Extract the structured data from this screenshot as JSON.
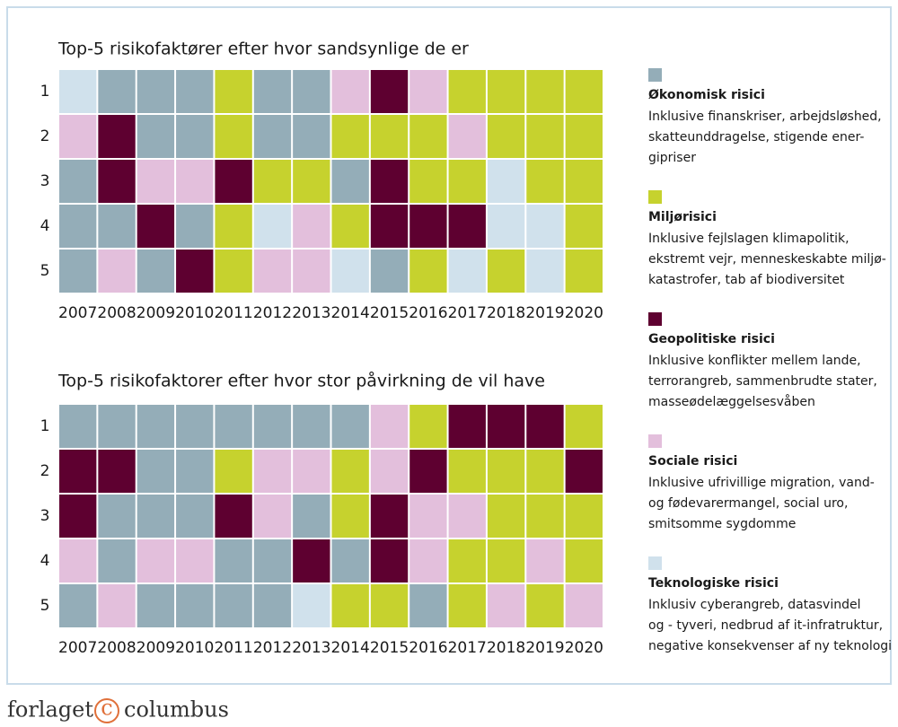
{
  "chart_data": [
    {
      "type": "categorical-grid",
      "title": "Top-5 risikofaktører efter hvor sandsynlige de er",
      "x": [
        "2007",
        "2008",
        "2009",
        "2010",
        "2011",
        "2012",
        "2013",
        "2014",
        "2015",
        "2016",
        "2017",
        "2018",
        "2019",
        "2020"
      ],
      "rows": [
        "1",
        "2",
        "3",
        "4",
        "5"
      ],
      "cells": [
        [
          "Teknologiske risici",
          "Økonomisk risici",
          "Økonomisk risici",
          "Økonomisk risici",
          "Miljørisici",
          "Økonomisk risici",
          "Økonomisk risici",
          "Sociale risici",
          "Geopolitiske risici",
          "Sociale risici",
          "Miljørisici",
          "Miljørisici",
          "Miljørisici",
          "Miljørisici"
        ],
        [
          "Sociale risici",
          "Geopolitiske risici",
          "Økonomisk risici",
          "Økonomisk risici",
          "Miljørisici",
          "Økonomisk risici",
          "Økonomisk risici",
          "Miljørisici",
          "Miljørisici",
          "Miljørisici",
          "Sociale risici",
          "Miljørisici",
          "Miljørisici",
          "Miljørisici"
        ],
        [
          "Økonomisk risici",
          "Geopolitiske risici",
          "Sociale risici",
          "Sociale risici",
          "Geopolitiske risici",
          "Miljørisici",
          "Miljørisici",
          "Økonomisk risici",
          "Geopolitiske risici",
          "Miljørisici",
          "Miljørisici",
          "Teknologiske risici",
          "Miljørisici",
          "Miljørisici"
        ],
        [
          "Økonomisk risici",
          "Økonomisk risici",
          "Geopolitiske risici",
          "Økonomisk risici",
          "Miljørisici",
          "Teknologiske risici",
          "Sociale risici",
          "Miljørisici",
          "Geopolitiske risici",
          "Geopolitiske risici",
          "Geopolitiske risici",
          "Teknologiske risici",
          "Teknologiske risici",
          "Miljørisici"
        ],
        [
          "Økonomisk risici",
          "Sociale risici",
          "Økonomisk risici",
          "Geopolitiske risici",
          "Miljørisici",
          "Sociale risici",
          "Sociale risici",
          "Teknologiske risici",
          "Økonomisk risici",
          "Miljørisici",
          "Teknologiske risici",
          "Miljørisici",
          "Teknologiske risici",
          "Miljørisici"
        ]
      ]
    },
    {
      "type": "categorical-grid",
      "title": "Top-5 risikofaktorer efter hvor stor påvirkning de vil have",
      "x": [
        "2007",
        "2008",
        "2009",
        "2010",
        "2011",
        "2012",
        "2013",
        "2014",
        "2015",
        "2016",
        "2017",
        "2018",
        "2019",
        "2020"
      ],
      "rows": [
        "1",
        "2",
        "3",
        "4",
        "5"
      ],
      "cells": [
        [
          "Økonomisk risici",
          "Økonomisk risici",
          "Økonomisk risici",
          "Økonomisk risici",
          "Økonomisk risici",
          "Økonomisk risici",
          "Økonomisk risici",
          "Økonomisk risici",
          "Sociale risici",
          "Miljørisici",
          "Geopolitiske risici",
          "Geopolitiske risici",
          "Geopolitiske risici",
          "Miljørisici"
        ],
        [
          "Geopolitiske risici",
          "Geopolitiske risici",
          "Økonomisk risici",
          "Økonomisk risici",
          "Miljørisici",
          "Sociale risici",
          "Sociale risici",
          "Miljørisici",
          "Sociale risici",
          "Geopolitiske risici",
          "Miljørisici",
          "Miljørisici",
          "Miljørisici",
          "Geopolitiske risici"
        ],
        [
          "Geopolitiske risici",
          "Økonomisk risici",
          "Økonomisk risici",
          "Økonomisk risici",
          "Geopolitiske risici",
          "Sociale risici",
          "Økonomisk risici",
          "Miljørisici",
          "Geopolitiske risici",
          "Sociale risici",
          "Sociale risici",
          "Miljørisici",
          "Miljørisici",
          "Miljørisici"
        ],
        [
          "Sociale risici",
          "Økonomisk risici",
          "Sociale risici",
          "Sociale risici",
          "Økonomisk risici",
          "Økonomisk risici",
          "Geopolitiske risici",
          "Økonomisk risici",
          "Geopolitiske risici",
          "Sociale risici",
          "Miljørisici",
          "Miljørisici",
          "Sociale risici",
          "Miljørisici"
        ],
        [
          "Økonomisk risici",
          "Sociale risici",
          "Økonomisk risici",
          "Økonomisk risici",
          "Økonomisk risici",
          "Økonomisk risici",
          "Teknologiske risici",
          "Miljørisici",
          "Miljørisici",
          "Økonomisk risici",
          "Miljørisici",
          "Sociale risici",
          "Miljørisici",
          "Sociale risici"
        ]
      ]
    }
  ],
  "legend": [
    {
      "name": "Økonomisk risici",
      "color": "#94adb8",
      "description": [
        "Inklusive finanskriser, arbejdsløshed,",
        "skatteunddragelse, stigende ener-",
        "gipriser"
      ]
    },
    {
      "name": "Miljørisici",
      "color": "#c6d22e",
      "description": [
        "Inklusive fejlslagen klimapolitik,",
        "ekstremt vejr, menneskeskabte miljø-",
        "katastrofer, tab af biodiversitet"
      ]
    },
    {
      "name": "Geopolitiske risici",
      "color": "#5e0030",
      "description": [
        "Inklusive konflikter mellem lande,",
        "terrorangreb, sammenbrudte stater,",
        "masseødelæggelsesvåben"
      ]
    },
    {
      "name": "Sociale risici",
      "color": "#e3bfdc",
      "description": [
        "Inklusive ufrivillige migration, vand-",
        "og fødevarermangel, social uro,",
        "smitsomme sygdomme"
      ]
    },
    {
      "name": "Teknologiske risici",
      "color": "#d0e1ec",
      "description": [
        "Inklusiv cyberangreb, datasvindel",
        "og - tyveri, nedbrud af it-infratruktur,",
        "negative konsekvenser af ny teknologi"
      ]
    }
  ],
  "footer": [
    "forlaget",
    "c",
    "columbus"
  ]
}
